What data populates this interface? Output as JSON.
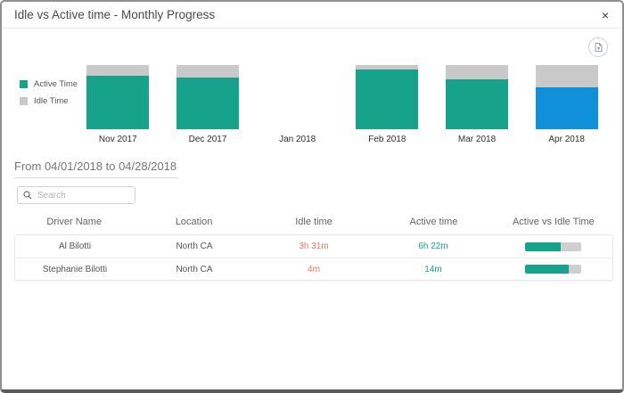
{
  "dialog": {
    "title": "Idle vs Active time - Monthly Progress",
    "close_label": "×"
  },
  "colors": {
    "active": "#17A28B",
    "idle": "#C9C9C9",
    "selected": "#1090D8",
    "idle_text": "#E8795A",
    "active_text": "#17A28B"
  },
  "icons": {
    "close": "close-icon",
    "export": "export-pdf-icon",
    "search": "search-icon"
  },
  "chart_data": {
    "type": "bar",
    "stacked": true,
    "percent": true,
    "title": "Idle vs Active time - Monthly Progress",
    "categories": [
      "Nov 2017",
      "Dec 2017",
      "Jan 2018",
      "Feb 2018",
      "Mar 2018",
      "Apr 2018"
    ],
    "series": [
      {
        "name": "Active Time",
        "color": "#17A28B",
        "values": [
          83,
          81,
          null,
          93,
          78,
          65
        ]
      },
      {
        "name": "Idle Time",
        "color": "#C9C9C9",
        "values": [
          17,
          19,
          null,
          7,
          22,
          35
        ]
      }
    ],
    "selected_category": "Apr 2018",
    "selected_color": "#1090D8",
    "legend_position": "left",
    "ylim": [
      0,
      100
    ],
    "grid": false,
    "xlabel": "",
    "ylabel": ""
  },
  "filter": {
    "range_label": "From 04/01/2018 to 04/28/2018"
  },
  "search": {
    "placeholder": "Search",
    "value": ""
  },
  "table": {
    "columns": [
      "Driver Name",
      "Location",
      "Idle time",
      "Active time",
      "Active vs Idle Time"
    ],
    "rows": [
      {
        "driver": "Al Bilotti",
        "location": "North CA",
        "idle": "3h 31m",
        "active": "6h 22m",
        "active_pct": 64
      },
      {
        "driver": "Stephanie Bilotti",
        "location": "North CA",
        "idle": "4m",
        "active": "14m",
        "active_pct": 78
      }
    ]
  }
}
